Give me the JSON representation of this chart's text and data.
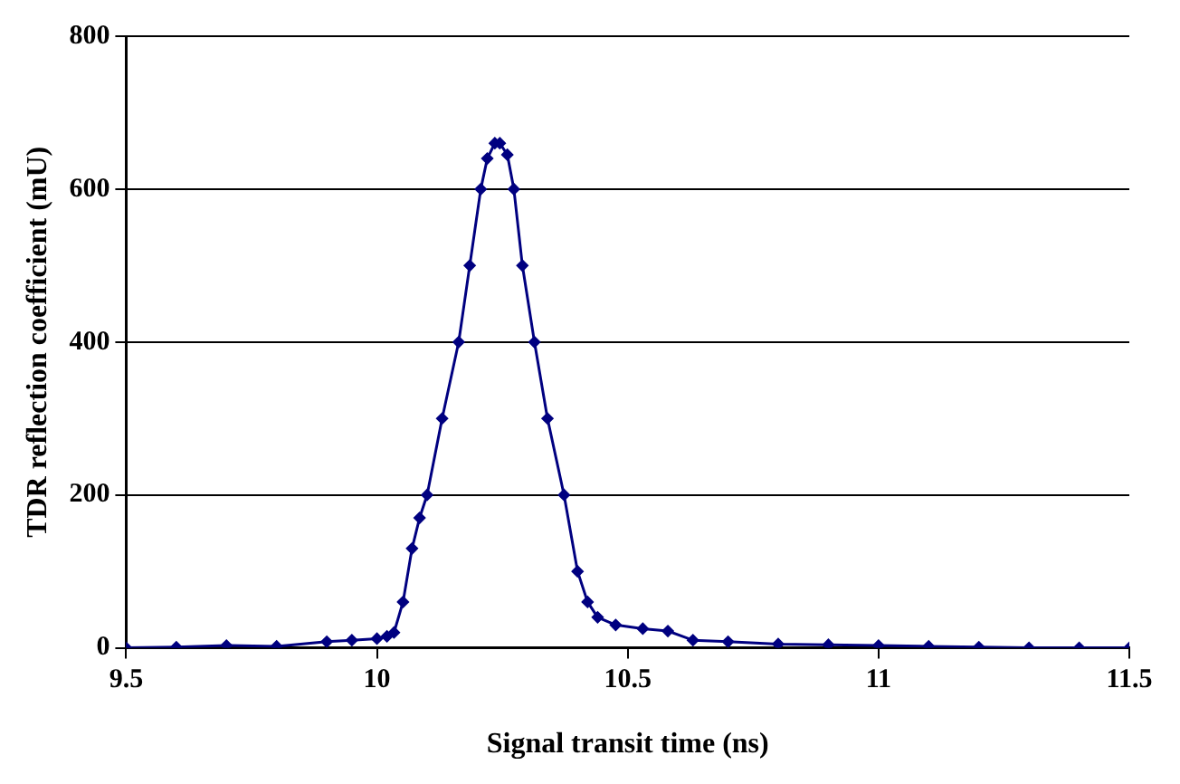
{
  "chart_data": {
    "type": "line",
    "xlabel": "Signal transit time (ns)",
    "ylabel": "TDR reflection coefficient (mU)",
    "xlim": [
      9.5,
      11.5
    ],
    "xticks": [
      9.5,
      10,
      10.5,
      11,
      11.5
    ],
    "ylim": [
      0,
      800
    ],
    "yticks": [
      0,
      200,
      400,
      600,
      800
    ],
    "grid": "y",
    "marker": "diamond",
    "line_style": "solid",
    "series": [
      {
        "color": "#000080",
        "x": [
          9.5,
          9.6,
          9.7,
          9.8,
          9.9,
          9.95,
          10.0,
          10.02,
          10.034,
          10.052,
          10.07,
          10.085,
          10.1,
          10.13,
          10.163,
          10.185,
          10.207,
          10.22,
          10.235,
          10.245,
          10.26,
          10.273,
          10.29,
          10.314,
          10.34,
          10.373,
          10.4,
          10.42,
          10.44,
          10.476,
          10.53,
          10.58,
          10.63,
          10.7,
          10.8,
          10.9,
          11.0,
          11.1,
          11.2,
          11.3,
          11.4,
          11.5
        ],
        "values": [
          0,
          1,
          3,
          2,
          8,
          10,
          12,
          15,
          20,
          60,
          130,
          170,
          200,
          300,
          400,
          500,
          600,
          640,
          660,
          660,
          645,
          600,
          500,
          400,
          300,
          200,
          100,
          60,
          40,
          30,
          25,
          22,
          10,
          8,
          5,
          4,
          3,
          2,
          1,
          0,
          0,
          0
        ]
      }
    ]
  }
}
